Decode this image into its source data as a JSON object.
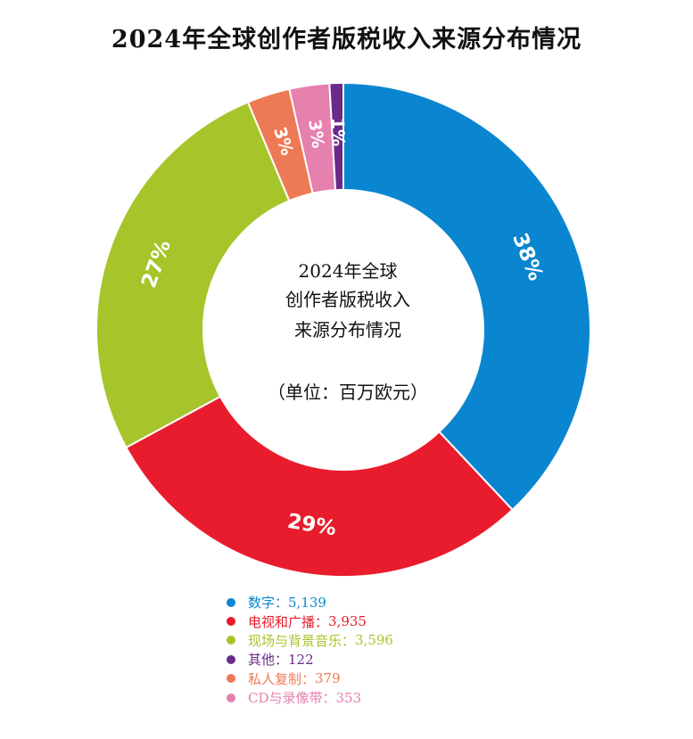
{
  "title": "2024年全球创作者版税收入来源分布情况",
  "center": {
    "line1": "2024年全球",
    "line2": "创作者版税收入",
    "line3": "来源分布情况",
    "unit": "（单位：百万欧元）"
  },
  "chart_data": {
    "type": "pie",
    "donut": true,
    "slices": [
      {
        "label": "数字",
        "value": 5139,
        "value_text": "5,139",
        "percent_label": "38%",
        "color": "#0a86d0"
      },
      {
        "label": "电视和广播",
        "value": 3935,
        "value_text": "3,935",
        "percent_label": "29%",
        "color": "#e81c2c"
      },
      {
        "label": "现场与背景音乐",
        "value": 3596,
        "value_text": "3,596",
        "percent_label": "27%",
        "color": "#a6c52a"
      },
      {
        "label": "私人复制",
        "value": 379,
        "value_text": "379",
        "percent_label": "3%",
        "color": "#ee7a55"
      },
      {
        "label": "CD与录像带",
        "value": 353,
        "value_text": "353",
        "percent_label": "3%",
        "color": "#e680ae"
      },
      {
        "label": "其他",
        "value": 122,
        "value_text": "122",
        "percent_label": "1%",
        "color": "#6a2a8a"
      }
    ],
    "legend": [
      {
        "label": "数字",
        "value_text": "5,139",
        "color": "#0a86d0"
      },
      {
        "label": "电视和广播",
        "value_text": "3,935",
        "color": "#e81c2c"
      },
      {
        "label": "现场与背景音乐",
        "value_text": "3,596",
        "color": "#a6c52a"
      },
      {
        "label": "其他",
        "value_text": "122",
        "color": "#6a2a8a"
      },
      {
        "label": "私人复制",
        "value_text": "379",
        "color": "#ee7a55"
      },
      {
        "label": "CD与录像带",
        "value_text": "353",
        "color": "#e680ae"
      }
    ],
    "legend_sep": "："
  }
}
